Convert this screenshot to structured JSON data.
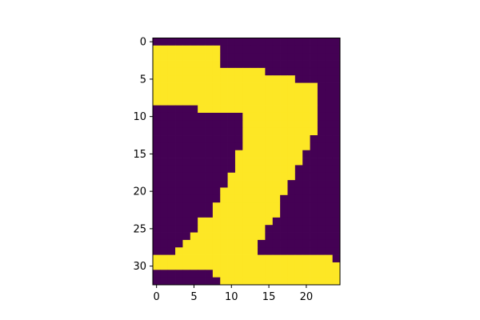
{
  "chart_data": {
    "type": "heatmap",
    "title": "",
    "xlabel": "",
    "ylabel": "",
    "colormap": "viridis",
    "colors": {
      "low": "#440154",
      "high": "#fde725"
    },
    "grid": false,
    "xlim": [
      -0.5,
      24.5
    ],
    "ylim": [
      32.5,
      -0.5
    ],
    "x_ticks": [
      0,
      5,
      10,
      15,
      20
    ],
    "y_ticks": [
      0,
      5,
      10,
      15,
      20,
      25,
      30
    ],
    "rows": [
      "0000000000000000000000000",
      "1111111110000000000000000",
      "1111111110000000000000000",
      "1111111110000000000000000",
      "1111111111111110000000000",
      "1111111111111111111000000",
      "1111111111111111111111000",
      "1111111111111111111111000",
      "1111111111111111111111000",
      "0000001111111111111111000",
      "0000000000001111111111000",
      "0000000000001111111111000",
      "0000000000001111111111000",
      "0000000000001111111110000",
      "0000000000001111111110000",
      "0000000000011111111100000",
      "0000000000011111111100000",
      "0000000000011111111000000",
      "0000000000111111111000000",
      "0000000000111111110000000",
      "0000000001111111110000000",
      "0000000001111111100000000",
      "0000000011111111100000000",
      "0000000011111111100000000",
      "0000001111111111000000000",
      "0000001111111110000000000",
      "0000011111111110000000000",
      "0000111111111100000000000",
      "0001111111111100000000000",
      "1111111111111111111111110",
      "1111111111111111111111111",
      "0000000011111111111111111",
      "0000000001111111111111111"
    ]
  }
}
